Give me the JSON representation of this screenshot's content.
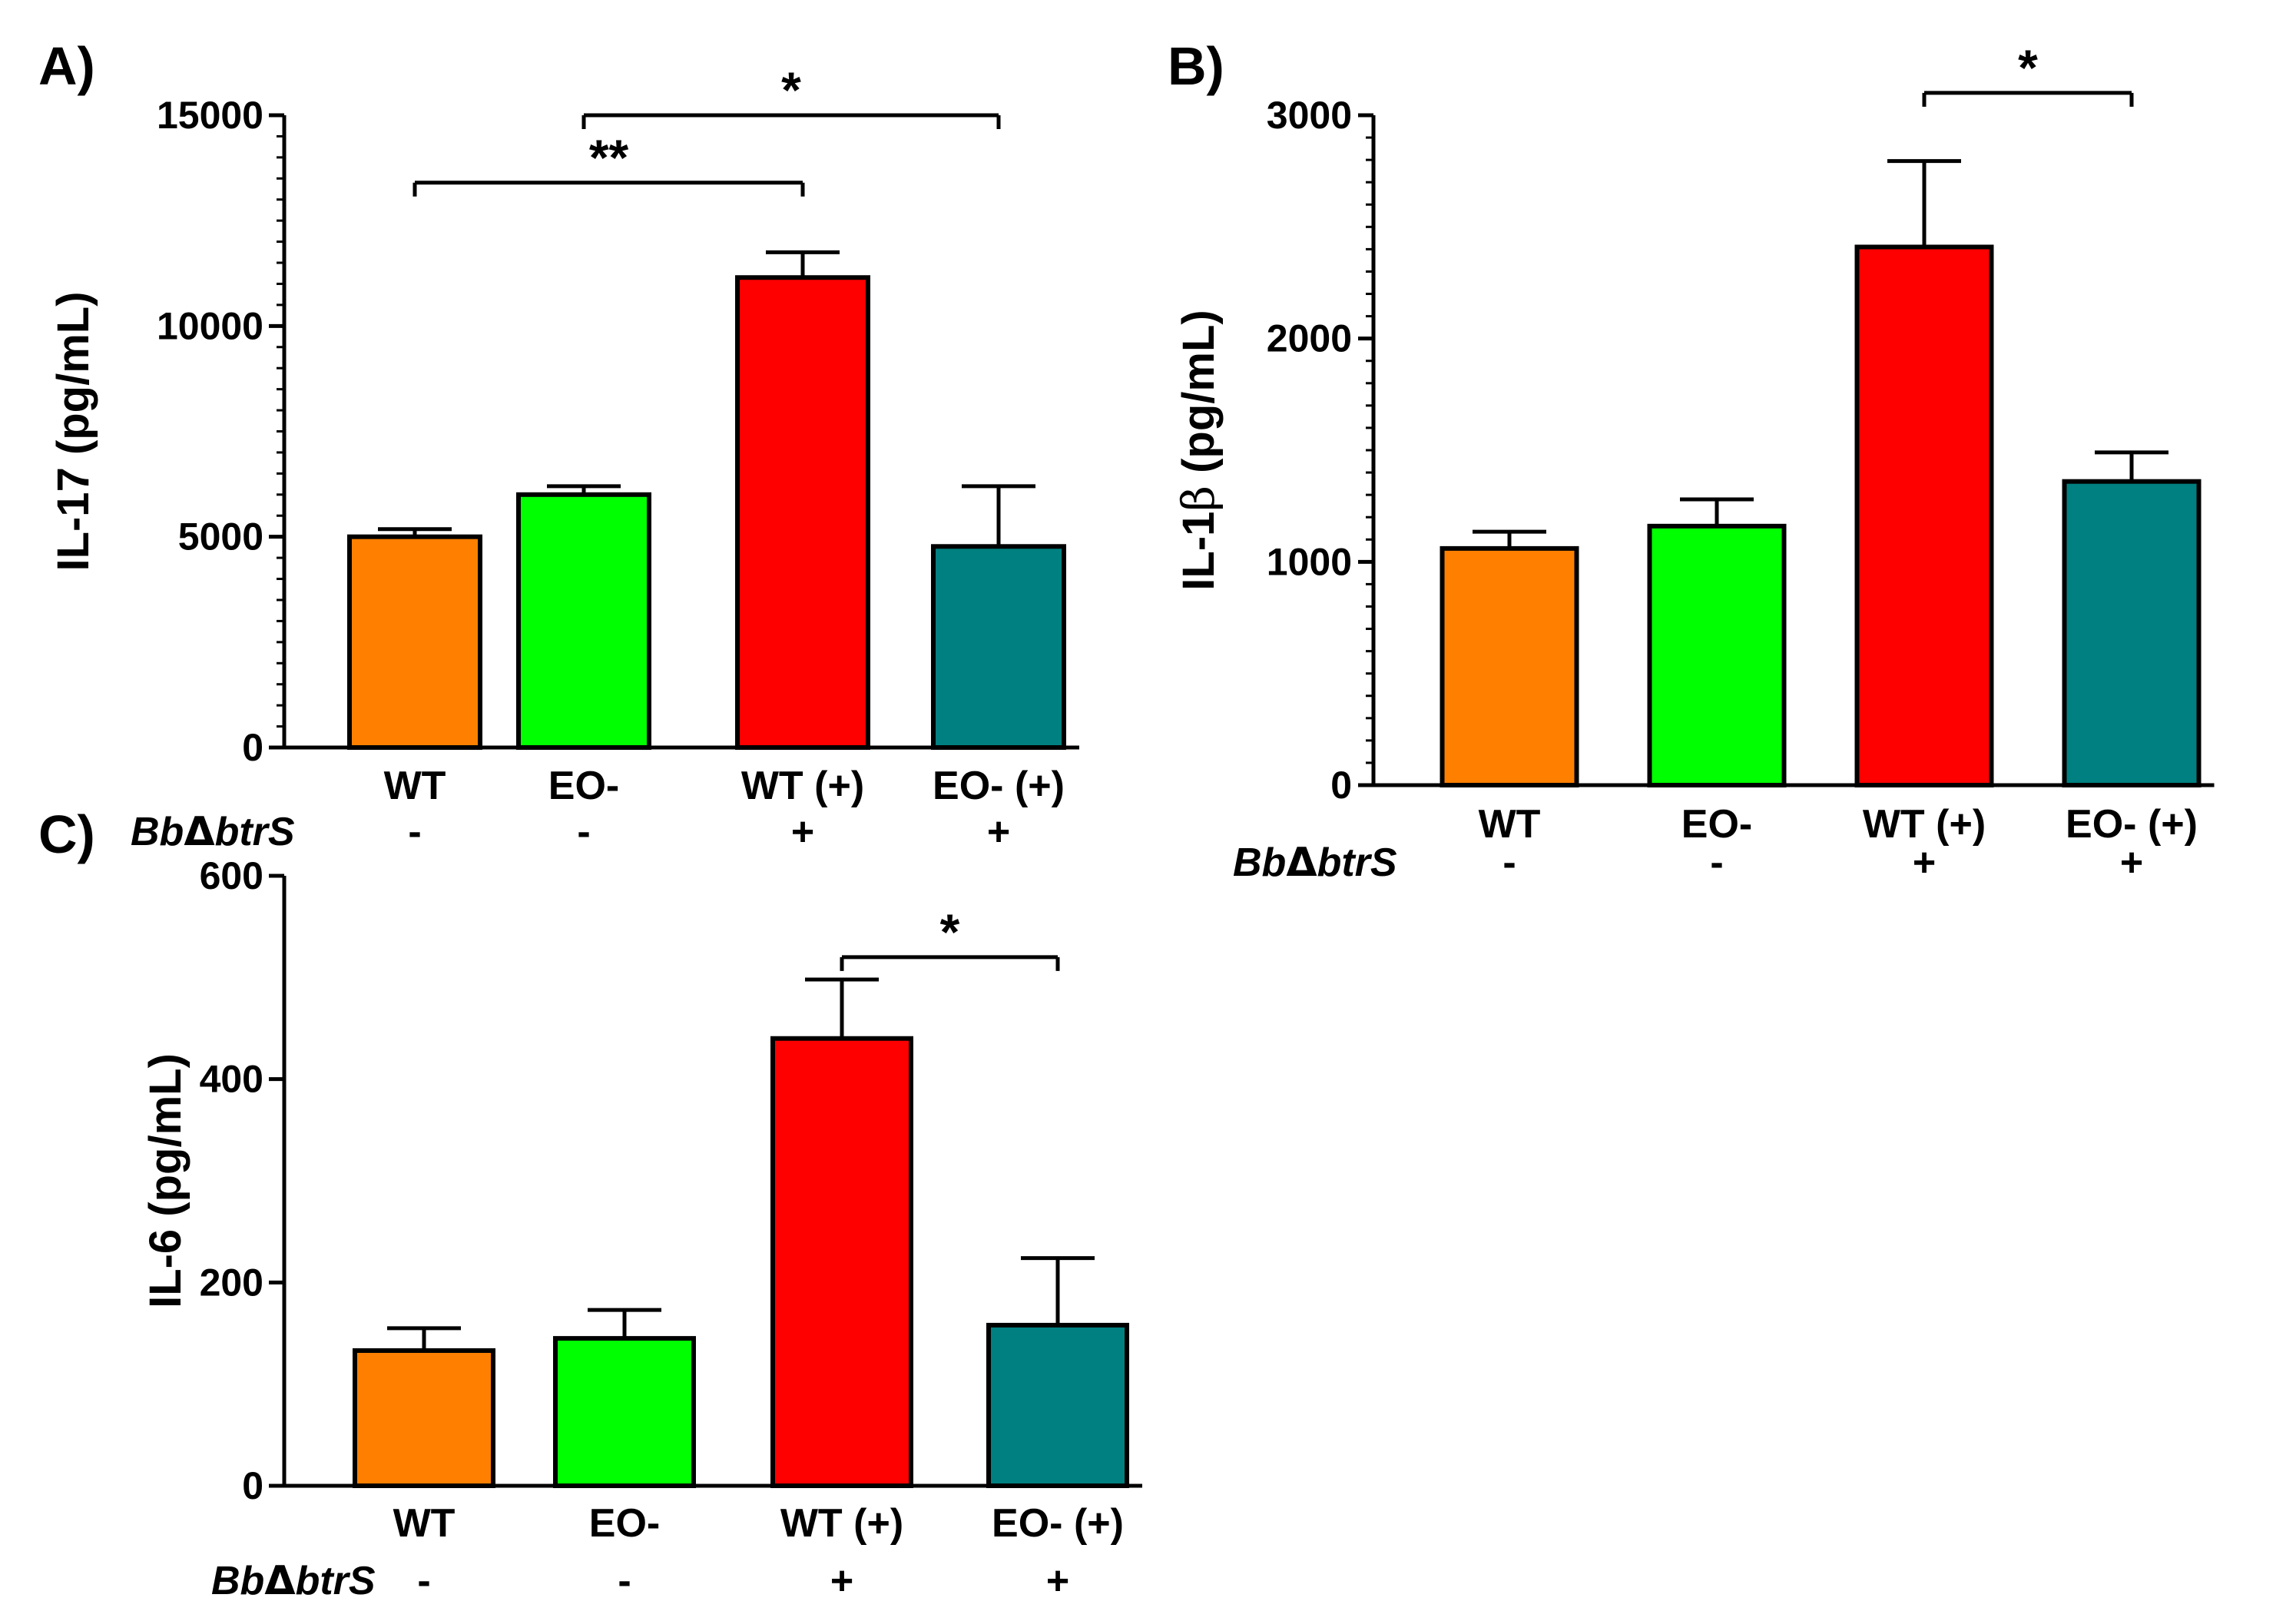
{
  "panels": {
    "A": {
      "label": "A)"
    },
    "B": {
      "label": "B)"
    },
    "C": {
      "label": "C)"
    }
  },
  "row_label_prefix": "Bb",
  "row_label_delta": "Δ",
  "row_label_suffix": "btrS",
  "chart_data": [
    {
      "id": "A",
      "type": "bar",
      "panel_label": "A)",
      "ylabel": "IL-17 (pg/mL)",
      "ylim": [
        0,
        15000
      ],
      "yticks": [
        0,
        5000,
        10000,
        15000
      ],
      "minor_ticks_per_major": 10,
      "grid": false,
      "categories": [
        "WT",
        "EO-",
        "WT (+)",
        "EO- (+)"
      ],
      "treatment_row_label": "BbΔbtrS",
      "treatment_row": [
        "-",
        "-",
        "+",
        "+"
      ],
      "values": [
        5000,
        6000,
        11150,
        4770
      ],
      "errors": [
        180,
        200,
        600,
        1430
      ],
      "colors": [
        "#FF8000",
        "#00FF00",
        "#FF0000",
        "#008080"
      ],
      "significance": [
        {
          "from": 0,
          "to": 2,
          "level": 13400,
          "text": "**"
        },
        {
          "from": 1,
          "to": 3,
          "level": 15000,
          "text": "*"
        }
      ]
    },
    {
      "id": "B",
      "type": "bar",
      "panel_label": "B)",
      "ylabel_main": "IL-1",
      "ylabel_greek": "β",
      "ylabel_unit": " (pg/mL)",
      "ylim": [
        0,
        3000
      ],
      "yticks": [
        0,
        1000,
        2000,
        3000
      ],
      "minor_ticks_per_major": 10,
      "grid": false,
      "categories": [
        "WT",
        "EO-",
        "WT (+)",
        "EO- (+)"
      ],
      "treatment_row_label": "BbΔbtrS",
      "treatment_row": [
        "-",
        "-",
        "+",
        "+"
      ],
      "values": [
        1060,
        1160,
        2410,
        1360
      ],
      "errors": [
        75,
        120,
        385,
        130
      ],
      "colors": [
        "#FF8000",
        "#00FF00",
        "#FF0000",
        "#008080"
      ],
      "significance": [
        {
          "from": 2,
          "to": 3,
          "level": 3100,
          "text": "*"
        }
      ]
    },
    {
      "id": "C",
      "type": "bar",
      "panel_label": "C)",
      "ylabel": "IL-6 (pg/mL)",
      "ylim": [
        0,
        600
      ],
      "yticks": [
        0,
        200,
        400,
        600
      ],
      "minor_ticks_per_major": 0,
      "grid": false,
      "categories": [
        "WT",
        "EO-",
        "WT (+)",
        "EO- (+)"
      ],
      "treatment_row_label": "BbΔbtrS",
      "treatment_row": [
        "-",
        "-",
        "+",
        "+"
      ],
      "values": [
        133,
        145,
        440,
        158
      ],
      "errors": [
        22,
        28,
        58,
        66
      ],
      "colors": [
        "#FF8000",
        "#00FF00",
        "#FF0000",
        "#008080"
      ],
      "significance": [
        {
          "from": 2,
          "to": 3,
          "level": 520,
          "text": "*"
        }
      ]
    }
  ]
}
